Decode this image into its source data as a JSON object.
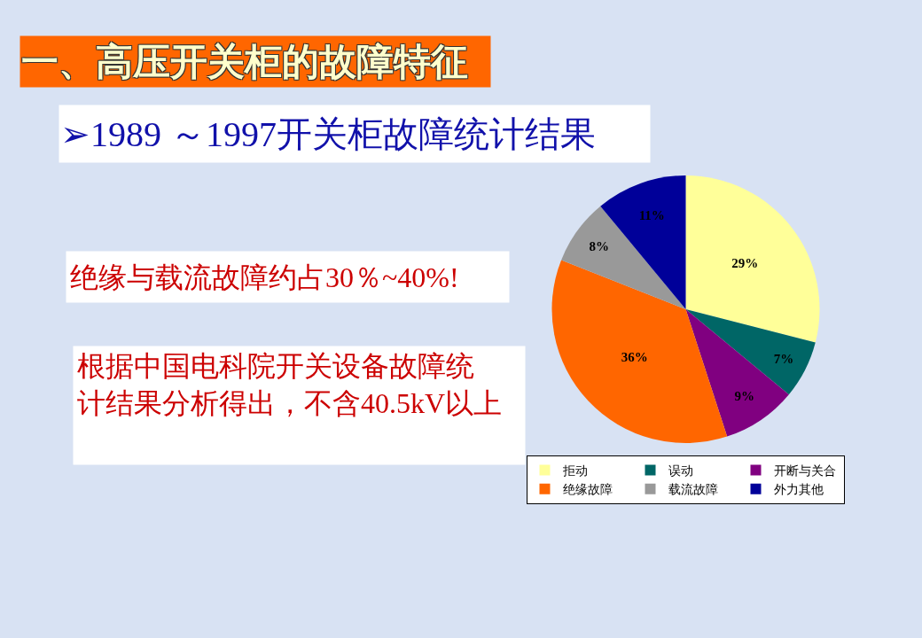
{
  "chart_data": {
    "type": "pie",
    "title": "一、高压开关柜的故障特征",
    "subtitle": "➢1989 ～1997开关柜故障统计结果",
    "annotations": [
      "绝缘与载流故障约占30％~40%!",
      "根据中国电科院开关设备故障统计结果分析得出，不含40.5kV以上"
    ],
    "categories": [
      "拒动",
      "误动",
      "开断与关合",
      "绝缘故障",
      "载流故障",
      "外力其他"
    ],
    "values": [
      29,
      7,
      9,
      36,
      8,
      11
    ],
    "colors": [
      "#ffff99",
      "#006666",
      "#800080",
      "#ff6600",
      "#999999",
      "#000099"
    ],
    "value_labels": [
      "29%",
      "7%",
      "9%",
      "36%",
      "8%",
      "11%"
    ],
    "legend": "bottom"
  }
}
